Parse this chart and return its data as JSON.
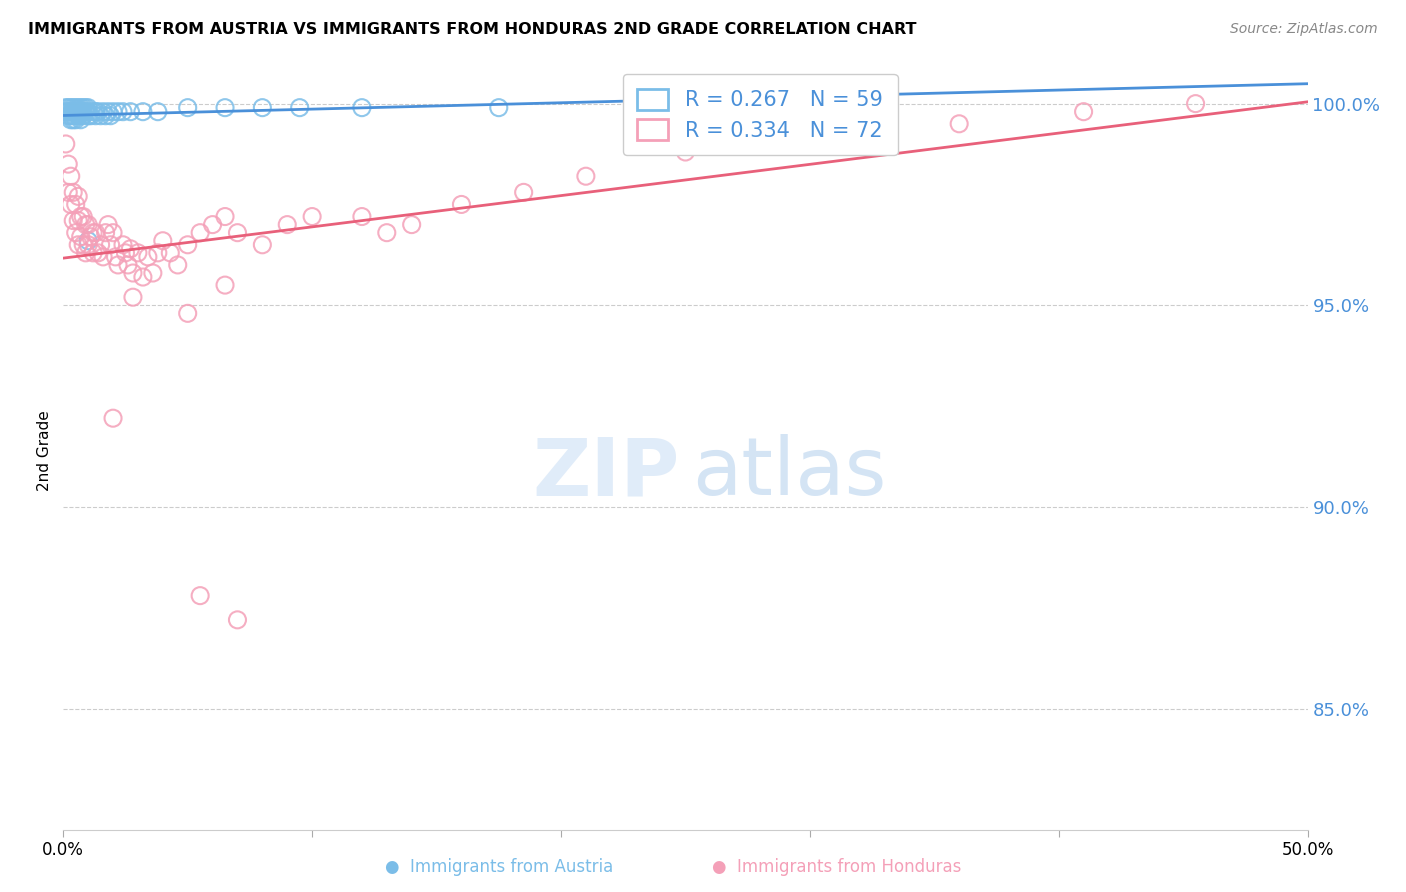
{
  "title": "IMMIGRANTS FROM AUSTRIA VS IMMIGRANTS FROM HONDURAS 2ND GRADE CORRELATION CHART",
  "source": "Source: ZipAtlas.com",
  "ylabel": "2nd Grade",
  "xlim": [
    0.0,
    0.5
  ],
  "ylim": [
    0.82,
    1.008
  ],
  "yticks": [
    0.85,
    0.9,
    0.95,
    1.0
  ],
  "ytick_labels": [
    "85.0%",
    "90.0%",
    "95.0%",
    "100.0%"
  ],
  "xticks": [
    0.0,
    0.1,
    0.2,
    0.3,
    0.4,
    0.5
  ],
  "xtick_labels": [
    "0.0%",
    "",
    "",
    "",
    "",
    "50.0%"
  ],
  "legend_austria_r": "R = 0.267",
  "legend_austria_n": "N = 59",
  "legend_honduras_r": "R = 0.334",
  "legend_honduras_n": "N = 72",
  "austria_color": "#7bbde8",
  "honduras_color": "#f4a0b8",
  "austria_line_color": "#4a90d9",
  "honduras_line_color": "#e8607a",
  "background_color": "#ffffff",
  "austria_x": [
    0.001,
    0.001,
    0.002,
    0.002,
    0.002,
    0.003,
    0.003,
    0.003,
    0.003,
    0.004,
    0.004,
    0.004,
    0.004,
    0.004,
    0.005,
    0.005,
    0.005,
    0.005,
    0.005,
    0.006,
    0.006,
    0.006,
    0.006,
    0.006,
    0.007,
    0.007,
    0.007,
    0.007,
    0.008,
    0.008,
    0.008,
    0.009,
    0.009,
    0.01,
    0.01,
    0.01,
    0.011,
    0.012,
    0.013,
    0.013,
    0.014,
    0.015,
    0.016,
    0.017,
    0.018,
    0.019,
    0.02,
    0.022,
    0.024,
    0.027,
    0.032,
    0.038,
    0.05,
    0.065,
    0.08,
    0.095,
    0.12,
    0.175,
    0.01
  ],
  "austria_y": [
    0.999,
    0.998,
    0.999,
    0.998,
    0.997,
    0.999,
    0.998,
    0.997,
    0.996,
    0.999,
    0.998,
    0.998,
    0.997,
    0.996,
    0.999,
    0.998,
    0.998,
    0.997,
    0.996,
    0.999,
    0.998,
    0.998,
    0.997,
    0.997,
    0.999,
    0.998,
    0.997,
    0.996,
    0.999,
    0.998,
    0.997,
    0.999,
    0.998,
    0.999,
    0.998,
    0.997,
    0.997,
    0.998,
    0.998,
    0.997,
    0.998,
    0.997,
    0.998,
    0.997,
    0.998,
    0.997,
    0.998,
    0.998,
    0.998,
    0.998,
    0.998,
    0.998,
    0.999,
    0.999,
    0.999,
    0.999,
    0.999,
    0.999,
    0.966
  ],
  "honduras_x": [
    0.001,
    0.002,
    0.002,
    0.003,
    0.003,
    0.004,
    0.004,
    0.005,
    0.005,
    0.006,
    0.006,
    0.006,
    0.007,
    0.007,
    0.008,
    0.008,
    0.009,
    0.009,
    0.01,
    0.01,
    0.011,
    0.012,
    0.012,
    0.013,
    0.014,
    0.015,
    0.016,
    0.017,
    0.018,
    0.019,
    0.02,
    0.021,
    0.022,
    0.024,
    0.025,
    0.026,
    0.027,
    0.028,
    0.03,
    0.032,
    0.034,
    0.036,
    0.038,
    0.04,
    0.043,
    0.046,
    0.05,
    0.055,
    0.06,
    0.065,
    0.07,
    0.08,
    0.09,
    0.1,
    0.12,
    0.14,
    0.16,
    0.185,
    0.21,
    0.25,
    0.3,
    0.36,
    0.41,
    0.455,
    0.028,
    0.05,
    0.065,
    0.02,
    0.13,
    0.33,
    0.055,
    0.07
  ],
  "honduras_y": [
    0.99,
    0.985,
    0.978,
    0.982,
    0.975,
    0.978,
    0.971,
    0.975,
    0.968,
    0.977,
    0.971,
    0.965,
    0.972,
    0.967,
    0.972,
    0.965,
    0.97,
    0.963,
    0.97,
    0.965,
    0.967,
    0.968,
    0.963,
    0.968,
    0.963,
    0.965,
    0.962,
    0.968,
    0.97,
    0.965,
    0.968,
    0.962,
    0.96,
    0.965,
    0.963,
    0.96,
    0.964,
    0.958,
    0.963,
    0.957,
    0.962,
    0.958,
    0.963,
    0.966,
    0.963,
    0.96,
    0.965,
    0.968,
    0.97,
    0.972,
    0.968,
    0.965,
    0.97,
    0.972,
    0.972,
    0.97,
    0.975,
    0.978,
    0.982,
    0.988,
    0.992,
    0.995,
    0.998,
    1.0,
    0.952,
    0.948,
    0.955,
    0.922,
    0.968,
    0.998,
    0.878,
    0.872
  ]
}
